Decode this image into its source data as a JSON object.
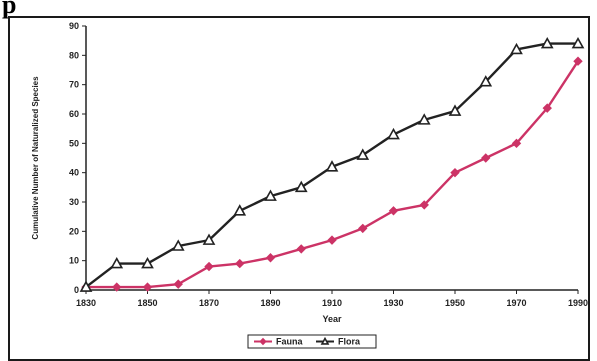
{
  "page": {
    "heading": "p"
  },
  "chart_data": {
    "type": "line",
    "title": "",
    "xlabel": "Year",
    "ylabel": "Cumulative Number of Naturalized Species",
    "xlim": [
      1830,
      1990
    ],
    "ylim": [
      0,
      90
    ],
    "x_ticks": [
      1830,
      1850,
      1870,
      1890,
      1910,
      1930,
      1950,
      1970,
      1990
    ],
    "y_ticks": [
      0,
      10,
      20,
      30,
      40,
      50,
      60,
      70,
      80,
      90
    ],
    "grid": false,
    "legend_position": "bottom-center",
    "series": [
      {
        "name": "Fauna",
        "color": "#cc3366",
        "marker": "diamond",
        "x": [
          1830,
          1840,
          1850,
          1860,
          1870,
          1880,
          1890,
          1900,
          1910,
          1920,
          1930,
          1940,
          1950,
          1960,
          1970,
          1980,
          1990
        ],
        "values": [
          1,
          1,
          1,
          2,
          8,
          9,
          11,
          14,
          17,
          21,
          27,
          29,
          40,
          45,
          50,
          62,
          78
        ]
      },
      {
        "name": "Flora",
        "color": "#222222",
        "marker": "triangle",
        "x": [
          1830,
          1840,
          1850,
          1860,
          1870,
          1880,
          1890,
          1900,
          1910,
          1920,
          1930,
          1940,
          1950,
          1960,
          1970,
          1980,
          1990
        ],
        "values": [
          1,
          9,
          9,
          15,
          17,
          27,
          32,
          35,
          42,
          46,
          53,
          58,
          61,
          71,
          82,
          84,
          84
        ]
      }
    ]
  }
}
